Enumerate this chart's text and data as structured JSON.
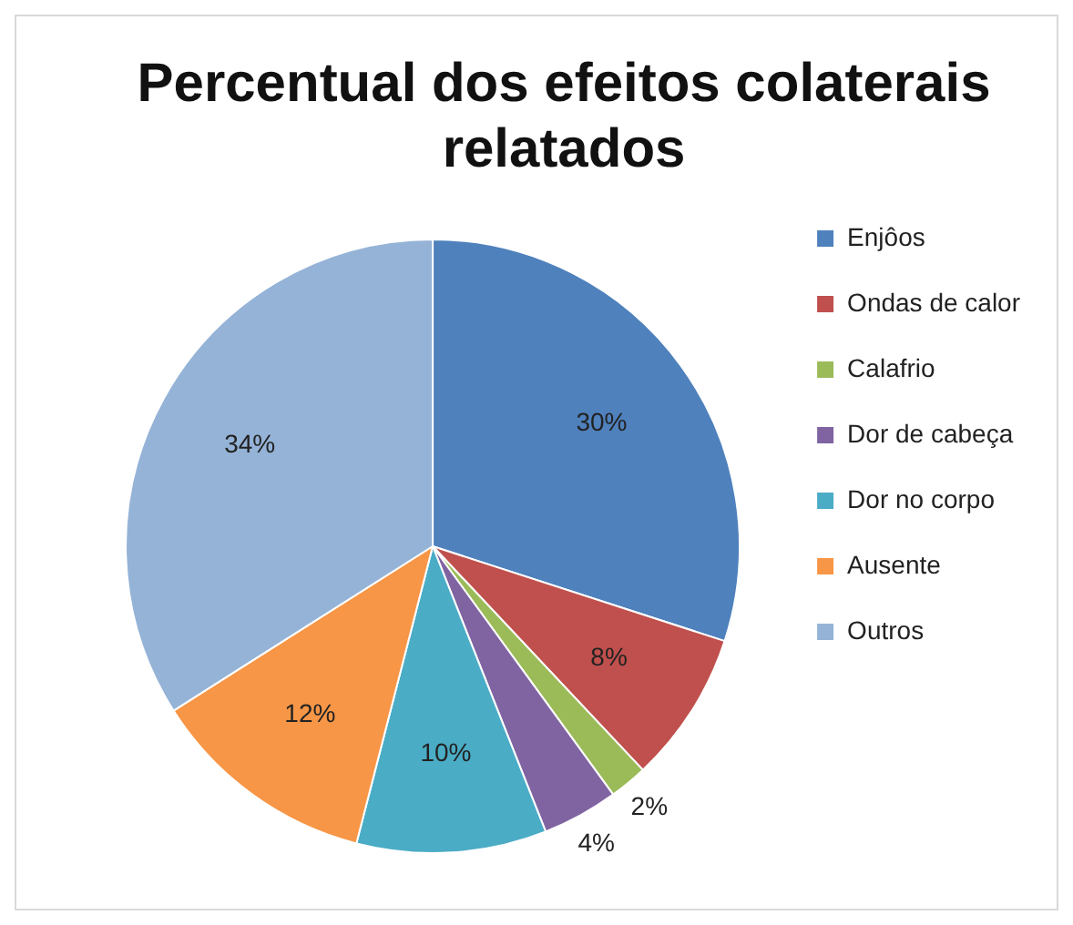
{
  "chart_data": {
    "type": "pie",
    "title": "Percentual dos efeitos colaterais relatados",
    "categories": [
      "Enjôos",
      "Ondas de calor",
      "Calafrio",
      "Dor de cabeça",
      "Dor no corpo",
      "Ausente",
      "Outros"
    ],
    "values": [
      30,
      8,
      2,
      4,
      10,
      12,
      34
    ],
    "colors": [
      "#4f81bd",
      "#c0504d",
      "#9bbb59",
      "#8064a2",
      "#4bacc6",
      "#f79646",
      "#95b3d7"
    ],
    "value_labels": [
      "30%",
      "8%",
      "2%",
      "4%",
      "10%",
      "12%",
      "34%"
    ],
    "legend": "right"
  }
}
